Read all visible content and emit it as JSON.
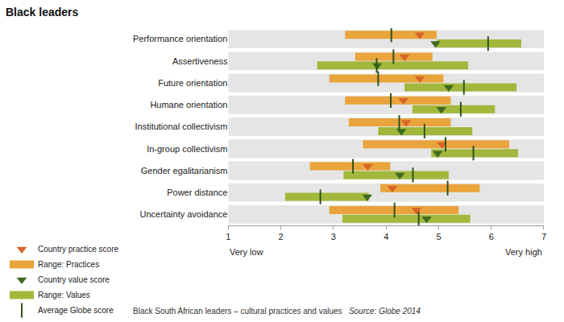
{
  "chart_data": {
    "type": "range",
    "orientation": "horizontal",
    "title": "Black leaders",
    "caption": "Black South African leaders – cultural practices and values",
    "source": "Source: Globe 2014",
    "categories": [
      "Performance orientation",
      "Assertiveness",
      "Future orientation",
      "Humane orientation",
      "Institutional collectivism",
      "In-group collectivism",
      "Gender egalitarianism",
      "Power distance",
      "Uncertainty avoidance"
    ],
    "series": [
      {
        "name": "Country practice score",
        "type": "marker",
        "marker": "triangle-down",
        "color": "#d8642a",
        "values": [
          4.64,
          4.35,
          4.64,
          4.33,
          4.38,
          5.06,
          3.65,
          4.12,
          4.58
        ]
      },
      {
        "name": "Range: Practices",
        "type": "range",
        "color": "#e9a43b",
        "values": [
          [
            3.22,
            4.96
          ],
          [
            3.41,
            4.88
          ],
          [
            2.92,
            5.09
          ],
          [
            3.22,
            5.23
          ],
          [
            3.29,
            5.23
          ],
          [
            3.56,
            6.34
          ],
          [
            2.55,
            4.08
          ],
          [
            3.89,
            5.78
          ],
          [
            2.92,
            5.38
          ]
        ]
      },
      {
        "name": "Country value score",
        "type": "marker",
        "marker": "triangle-down",
        "color": "#3f6a22",
        "values": [
          4.94,
          3.83,
          5.19,
          5.05,
          4.29,
          4.98,
          4.26,
          3.64,
          4.77
        ]
      },
      {
        "name": "Range: Values",
        "type": "range",
        "color": "#a2b83c",
        "values": [
          [
            4.96,
            6.57
          ],
          [
            2.69,
            5.56
          ],
          [
            4.35,
            6.48
          ],
          [
            4.5,
            6.07
          ],
          [
            3.85,
            5.64
          ],
          [
            4.86,
            6.51
          ],
          [
            3.19,
            5.19
          ],
          [
            2.08,
            3.67
          ],
          [
            3.17,
            5.6
          ]
        ]
      },
      {
        "name": "Average Globe score",
        "type": "tick",
        "marker": "line-ns",
        "color": "#2f5318",
        "values": [
          [
            4.1,
            5.94
          ],
          [
            4.14,
            3.82
          ],
          [
            3.85,
            5.48
          ],
          [
            4.09,
            5.42
          ],
          [
            4.25,
            4.73
          ],
          [
            5.13,
            5.66
          ],
          [
            3.37,
            4.51
          ],
          [
            5.17,
            2.75
          ],
          [
            4.16,
            4.62
          ]
        ]
      }
    ],
    "xlim": [
      1,
      7
    ],
    "xticks": [
      1,
      2,
      3,
      4,
      5,
      6,
      7
    ],
    "annotations": [
      {
        "x": 1,
        "text": "Very low"
      },
      {
        "x": 7,
        "text": "Very high"
      }
    ],
    "grid": false,
    "legend": "bottom"
  }
}
